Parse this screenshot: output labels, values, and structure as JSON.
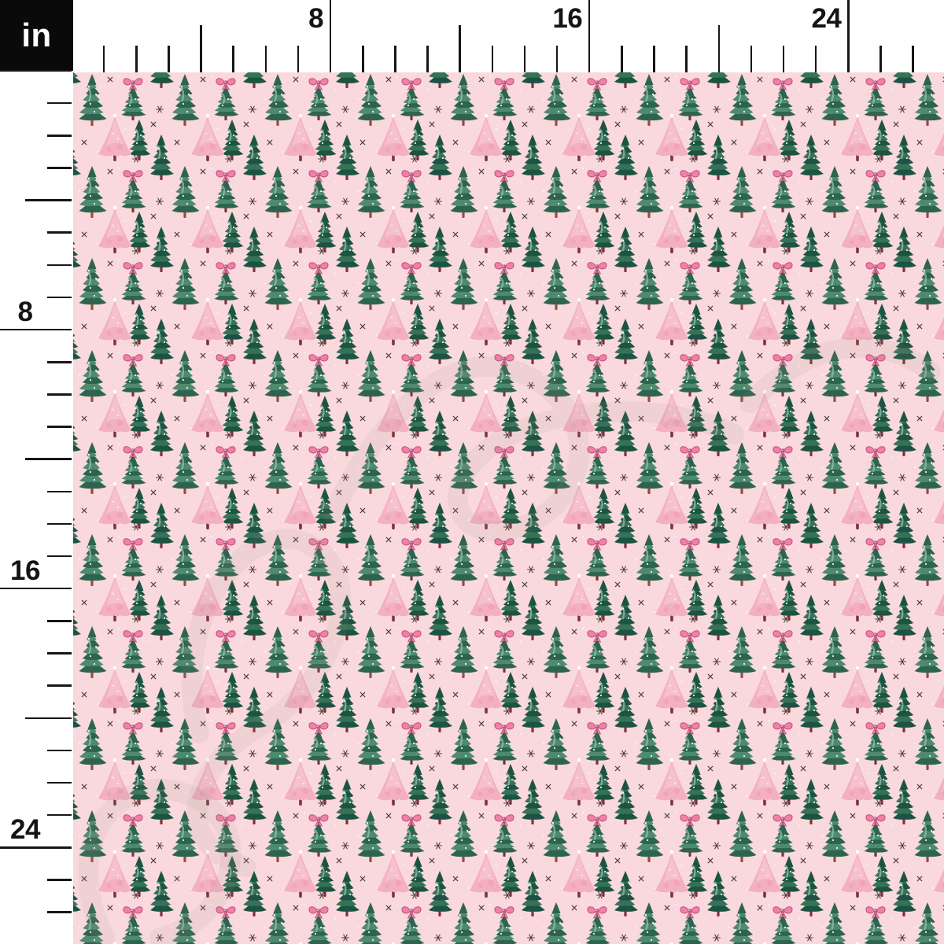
{
  "unit_box": {
    "label": "in"
  },
  "rulers": {
    "unit": "inches",
    "top": {
      "labels": [
        "8",
        "16",
        "24"
      ],
      "major_inches": [
        8,
        16,
        24
      ]
    },
    "left": {
      "labels": [
        "8",
        "16",
        "24"
      ],
      "major_inches": [
        8,
        16,
        24
      ]
    }
  },
  "fabric": {
    "description": "Seamless watercolor Christmas tree pattern: tall green pines, green trees topped with pink bows, soft pink trees, small dark green triangle trees, tiny snowflake and x sparkles and white dots on a light pink background",
    "palette": {
      "background": "#f9d9dd",
      "pine_green": "#4e8a6f",
      "pine_dark": "#2d6450",
      "pine_light": "#9cc4ae",
      "tree_green2": "#357257",
      "tree_dark": "#1d5342",
      "pink_base": "#f3b0c0",
      "pink_light": "#f8d0d9",
      "pink_dark": "#eb93a9",
      "bow_pink": "#f180a8",
      "bow_dark": "#c2557e",
      "bow_light": "#f9c0d4",
      "trunk": "#7d3434",
      "trunk_red": "#9c4a3c",
      "mark": "#4e3c3a"
    },
    "watermark": {
      "style": "faint cursive script",
      "color": "#a18f8d",
      "opacity": 0.11
    }
  }
}
